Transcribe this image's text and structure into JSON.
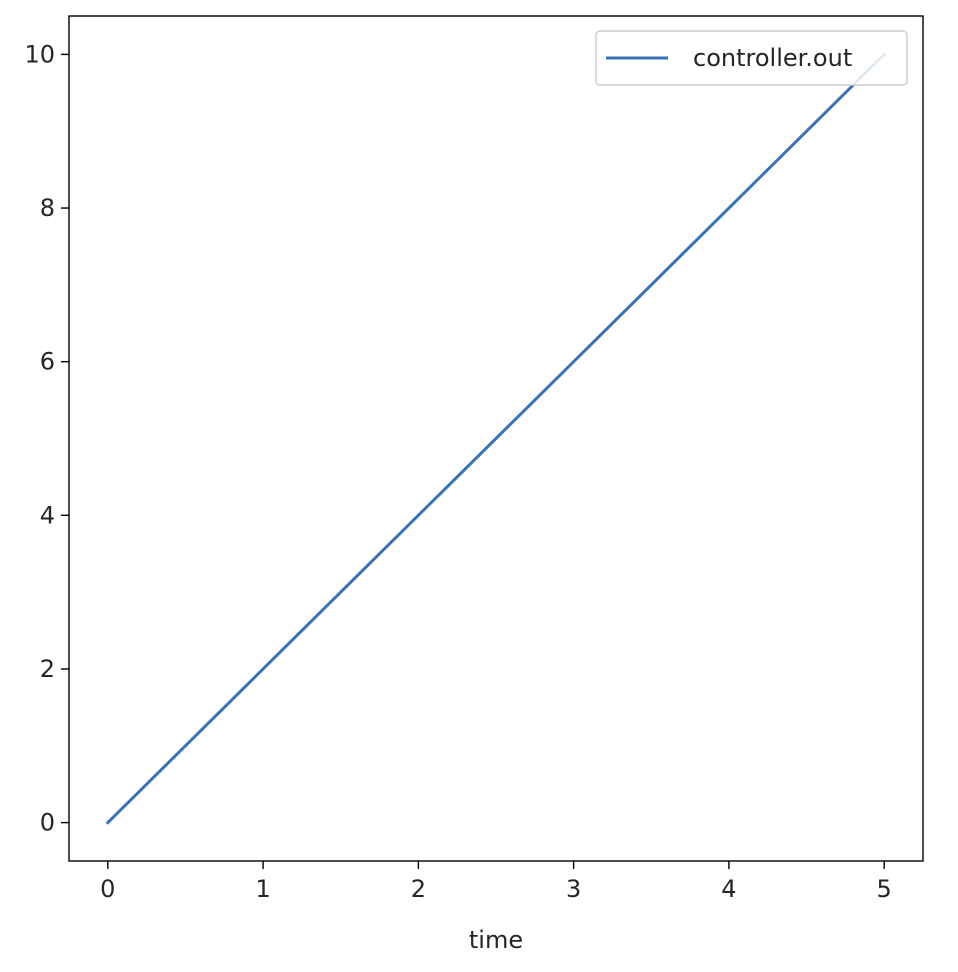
{
  "chart_data": {
    "type": "line",
    "title": "",
    "xlabel": "time",
    "ylabel": "",
    "xlim": [
      -0.25,
      5.25
    ],
    "ylim": [
      -0.5,
      10.5
    ],
    "xticks": [
      0,
      1,
      2,
      3,
      4,
      5
    ],
    "yticks": [
      0,
      2,
      4,
      6,
      8,
      10
    ],
    "grid": false,
    "legend_position": "top-right",
    "series": [
      {
        "name": "controller.out",
        "color": "#3a73b4",
        "x": [
          0,
          1,
          2,
          3,
          4,
          5
        ],
        "y": [
          0,
          2,
          4,
          6,
          8,
          10
        ]
      }
    ]
  }
}
